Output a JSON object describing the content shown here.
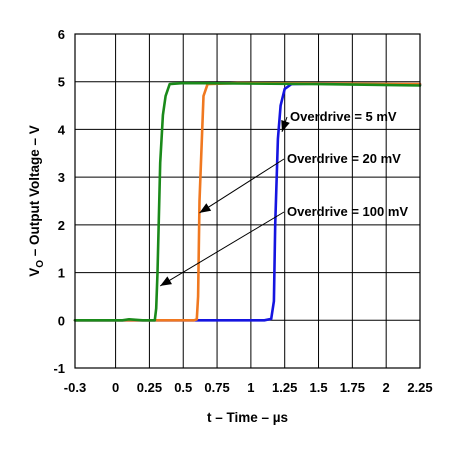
{
  "chart_data": {
    "type": "line",
    "xlabel": "t – Time – µs",
    "ylabel_main": "V",
    "ylabel_sub": "O",
    "ylabel_rest": " – Output Voltage – V",
    "xlim": [
      -0.3,
      2.25
    ],
    "ylim": [
      -1,
      6
    ],
    "grid": true,
    "x_ticks": [
      -0.3,
      0,
      0.25,
      0.5,
      0.75,
      1,
      1.25,
      1.5,
      1.75,
      2,
      2.25
    ],
    "x_tick_labels": [
      "-0.3",
      "0",
      "0.25",
      "0.5",
      "0.75",
      "1",
      "1.25",
      "1.5",
      "1.75",
      "2",
      "2.25"
    ],
    "y_ticks": [
      -1,
      0,
      1,
      2,
      3,
      4,
      5,
      6
    ],
    "y_tick_labels": [
      "-1",
      "0",
      "1",
      "2",
      "3",
      "4",
      "5",
      "6"
    ],
    "series": [
      {
        "color": "#1515e0",
        "points": [
          [
            -0.3,
            0
          ],
          [
            1.1,
            0
          ],
          [
            1.15,
            0.03
          ],
          [
            1.17,
            0.4
          ],
          [
            1.18,
            2
          ],
          [
            1.2,
            3.8
          ],
          [
            1.22,
            4.5
          ],
          [
            1.25,
            4.85
          ],
          [
            1.3,
            4.95
          ],
          [
            1.5,
            4.96
          ],
          [
            2.25,
            4.94
          ]
        ]
      },
      {
        "color": "#f07820",
        "points": [
          [
            -0.3,
            0
          ],
          [
            0.58,
            0
          ],
          [
            0.6,
            0.02
          ],
          [
            0.61,
            0.5
          ],
          [
            0.62,
            2.5
          ],
          [
            0.65,
            4.7
          ],
          [
            0.68,
            4.95
          ],
          [
            0.9,
            4.97
          ],
          [
            2.25,
            4.95
          ]
        ]
      },
      {
        "color": "#1a8a1a",
        "points": [
          [
            -0.3,
            0
          ],
          [
            0.05,
            0
          ],
          [
            0.1,
            0.02
          ],
          [
            0.2,
            0
          ],
          [
            0.29,
            0
          ],
          [
            0.3,
            0.25
          ],
          [
            0.31,
            1
          ],
          [
            0.33,
            3.3
          ],
          [
            0.35,
            4.3
          ],
          [
            0.37,
            4.7
          ],
          [
            0.4,
            4.95
          ],
          [
            0.5,
            4.97
          ],
          [
            1.5,
            4.95
          ],
          [
            2.25,
            4.92
          ]
        ]
      }
    ],
    "annotations": [
      {
        "text": "Overdrive = 5 mV",
        "target": [
          1.23,
          3.95
        ]
      },
      {
        "text": "Overdrive = 20 mV",
        "target": [
          0.62,
          2.25
        ]
      },
      {
        "text": "Overdrive = 100 mV",
        "target": [
          0.33,
          0.72
        ]
      }
    ]
  }
}
